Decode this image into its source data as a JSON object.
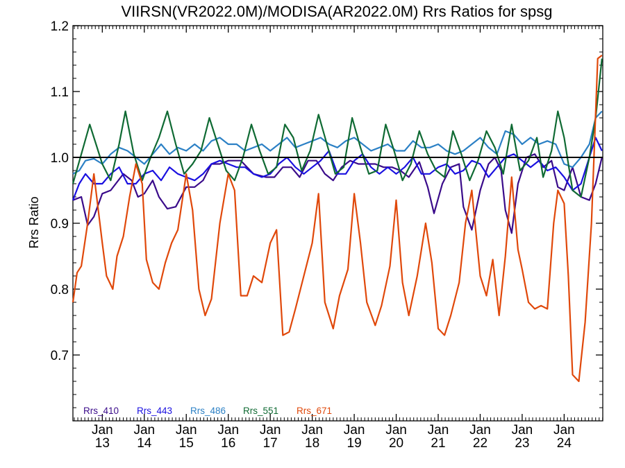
{
  "chart_data": {
    "type": "line",
    "title": "VIIRSN(VR2022.0M)/MODISA(AR2022.0M)  Rrs Ratios for spsg",
    "xlabel": "",
    "ylabel": "Rrs Ratio",
    "ylim": [
      0.6,
      1.2
    ],
    "xlim": [
      2012.3,
      2024.92
    ],
    "yticks": [
      0.7,
      0.8,
      0.9,
      1.0,
      1.1,
      1.2
    ],
    "ytick_labels": [
      "0.7",
      "0.8",
      "0.9",
      "1.0",
      "1.1",
      "1.2"
    ],
    "xticks": [
      {
        "pos": 2013.0,
        "label1": "Jan",
        "label2": "13"
      },
      {
        "pos": 2014.0,
        "label1": "Jan",
        "label2": "14"
      },
      {
        "pos": 2015.0,
        "label1": "Jan",
        "label2": "15"
      },
      {
        "pos": 2016.0,
        "label1": "Jan",
        "label2": "16"
      },
      {
        "pos": 2017.0,
        "label1": "Jan",
        "label2": "17"
      },
      {
        "pos": 2018.0,
        "label1": "Jan",
        "label2": "18"
      },
      {
        "pos": 2019.0,
        "label1": "Jan",
        "label2": "19"
      },
      {
        "pos": 2020.0,
        "label1": "Jan",
        "label2": "20"
      },
      {
        "pos": 2021.0,
        "label1": "Jan",
        "label2": "21"
      },
      {
        "pos": 2022.0,
        "label1": "Jan",
        "label2": "22"
      },
      {
        "pos": 2023.0,
        "label1": "Jan",
        "label2": "23"
      },
      {
        "pos": 2024.0,
        "label1": "Jan",
        "label2": "24"
      }
    ],
    "reference_line": 1.0,
    "legend_position": "bottom-left",
    "grid": false,
    "series": [
      {
        "name": "Rrs_410",
        "color": "#3a0b8a",
        "x": [
          2012.3,
          2012.5,
          2012.65,
          2012.8,
          2013.0,
          2013.2,
          2013.5,
          2013.7,
          2013.85,
          2014.0,
          2014.2,
          2014.35,
          2014.55,
          2014.75,
          2015.0,
          2015.2,
          2015.4,
          2015.6,
          2015.8,
          2016.0,
          2016.3,
          2016.6,
          2016.9,
          2017.1,
          2017.3,
          2017.5,
          2017.7,
          2017.9,
          2018.1,
          2018.3,
          2018.5,
          2018.7,
          2018.9,
          2019.1,
          2019.3,
          2019.5,
          2019.7,
          2019.9,
          2020.1,
          2020.3,
          2020.55,
          2020.75,
          2020.9,
          2021.1,
          2021.3,
          2021.5,
          2021.6,
          2021.8,
          2022.0,
          2022.2,
          2022.35,
          2022.5,
          2022.6,
          2022.75,
          2022.9,
          2023.1,
          2023.3,
          2023.5,
          2023.7,
          2023.85,
          2024.0,
          2024.2,
          2024.4,
          2024.6,
          2024.75,
          2024.9
        ],
        "y": [
          0.935,
          0.94,
          0.897,
          0.91,
          0.945,
          0.95,
          0.975,
          0.965,
          0.94,
          0.945,
          0.965,
          0.94,
          0.922,
          0.925,
          0.955,
          0.955,
          0.965,
          0.99,
          0.99,
          0.995,
          0.995,
          0.975,
          0.97,
          0.97,
          0.985,
          0.985,
          0.97,
          0.995,
          0.995,
          0.975,
          0.965,
          0.985,
          0.995,
          0.99,
          0.99,
          0.99,
          0.985,
          0.985,
          0.98,
          0.97,
          0.993,
          0.955,
          0.915,
          0.96,
          0.985,
          0.99,
          0.925,
          0.89,
          0.95,
          0.99,
          1.0,
          0.98,
          0.92,
          0.885,
          0.96,
          1.0,
          1.005,
          0.985,
          0.995,
          0.955,
          0.95,
          0.985,
          0.94,
          0.935,
          0.96,
          1.0
        ]
      },
      {
        "name": "Rrs_443",
        "color": "#1a10e0",
        "x": [
          2012.3,
          2012.45,
          2012.6,
          2012.8,
          2013.0,
          2013.2,
          2013.4,
          2013.6,
          2013.8,
          2014.0,
          2014.2,
          2014.4,
          2014.6,
          2014.8,
          2015.0,
          2015.2,
          2015.4,
          2015.6,
          2015.8,
          2016.0,
          2016.2,
          2016.4,
          2016.6,
          2016.8,
          2017.0,
          2017.2,
          2017.4,
          2017.6,
          2017.8,
          2018.0,
          2018.2,
          2018.4,
          2018.6,
          2018.8,
          2019.0,
          2019.2,
          2019.4,
          2019.6,
          2019.8,
          2020.0,
          2020.2,
          2020.4,
          2020.6,
          2020.8,
          2021.0,
          2021.2,
          2021.4,
          2021.6,
          2021.8,
          2022.0,
          2022.2,
          2022.4,
          2022.6,
          2022.8,
          2023.0,
          2023.2,
          2023.4,
          2023.6,
          2023.8,
          2024.0,
          2024.2,
          2024.4,
          2024.6,
          2024.75,
          2024.9
        ],
        "y": [
          0.935,
          0.96,
          0.975,
          0.96,
          0.96,
          0.975,
          0.985,
          0.96,
          0.96,
          0.975,
          0.98,
          0.965,
          0.985,
          0.975,
          0.97,
          0.965,
          0.975,
          0.99,
          0.995,
          0.99,
          0.985,
          0.985,
          0.975,
          0.97,
          0.975,
          0.99,
          1.0,
          0.985,
          0.975,
          0.985,
          0.995,
          1.01,
          0.975,
          0.975,
          0.995,
          1.005,
          0.985,
          0.975,
          0.985,
          0.975,
          0.985,
          1.0,
          0.975,
          0.975,
          0.985,
          0.99,
          0.975,
          0.98,
          0.995,
          0.99,
          0.97,
          0.985,
          1.0,
          1.005,
          0.995,
          0.985,
          0.995,
          0.98,
          0.985,
          0.97,
          0.95,
          0.96,
          1.0,
          1.03,
          1.01
        ]
      },
      {
        "name": "Rrs_486",
        "color": "#2b80c5",
        "x": [
          2012.3,
          2012.45,
          2012.6,
          2012.8,
          2013.0,
          2013.2,
          2013.4,
          2013.6,
          2013.8,
          2014.0,
          2014.2,
          2014.4,
          2014.6,
          2014.8,
          2015.0,
          2015.2,
          2015.4,
          2015.6,
          2015.8,
          2016.0,
          2016.2,
          2016.4,
          2016.6,
          2016.8,
          2017.0,
          2017.2,
          2017.4,
          2017.6,
          2017.8,
          2018.0,
          2018.2,
          2018.4,
          2018.6,
          2018.8,
          2019.0,
          2019.2,
          2019.4,
          2019.6,
          2019.8,
          2020.0,
          2020.2,
          2020.4,
          2020.6,
          2020.8,
          2021.0,
          2021.2,
          2021.4,
          2021.6,
          2021.8,
          2022.0,
          2022.2,
          2022.4,
          2022.6,
          2022.8,
          2023.0,
          2023.2,
          2023.4,
          2023.6,
          2023.8,
          2024.0,
          2024.2,
          2024.4,
          2024.6,
          2024.75,
          2024.9
        ],
        "y": [
          0.975,
          0.98,
          0.995,
          0.998,
          0.99,
          1.005,
          1.015,
          1.01,
          1.0,
          0.99,
          1.005,
          1.02,
          1.005,
          1.015,
          1.01,
          1.02,
          1.01,
          1.025,
          1.03,
          1.02,
          1.02,
          1.01,
          1.015,
          1.02,
          1.01,
          1.02,
          1.03,
          1.015,
          1.02,
          1.025,
          1.03,
          1.02,
          1.015,
          1.025,
          1.03,
          1.02,
          1.01,
          1.015,
          1.02,
          1.01,
          1.01,
          1.025,
          1.015,
          1.015,
          1.02,
          1.01,
          1.005,
          1.01,
          1.02,
          1.03,
          1.015,
          1.005,
          1.04,
          1.035,
          1.02,
          1.03,
          1.02,
          1.025,
          1.02,
          0.99,
          0.985,
          1.0,
          1.02,
          1.06,
          1.07
        ]
      },
      {
        "name": "Rrs_551",
        "color": "#0f6a33",
        "x": [
          2012.3,
          2012.5,
          2012.7,
          2012.85,
          2013.0,
          2013.2,
          2013.4,
          2013.55,
          2013.75,
          2013.95,
          2014.15,
          2014.35,
          2014.55,
          2014.75,
          2014.95,
          2015.15,
          2015.35,
          2015.55,
          2015.75,
          2015.95,
          2016.15,
          2016.35,
          2016.55,
          2016.75,
          2016.95,
          2017.15,
          2017.35,
          2017.55,
          2017.75,
          2017.95,
          2018.15,
          2018.35,
          2018.55,
          2018.75,
          2018.95,
          2019.15,
          2019.35,
          2019.55,
          2019.75,
          2019.95,
          2020.15,
          2020.35,
          2020.55,
          2020.75,
          2020.95,
          2021.15,
          2021.35,
          2021.55,
          2021.75,
          2021.95,
          2022.15,
          2022.35,
          2022.55,
          2022.75,
          2022.95,
          2023.15,
          2023.35,
          2023.5,
          2023.7,
          2023.85,
          2024.0,
          2024.2,
          2024.4,
          2024.6,
          2024.75,
          2024.9
        ],
        "y": [
          0.96,
          1.005,
          1.05,
          1.02,
          0.99,
          0.965,
          1.02,
          1.07,
          1.005,
          0.965,
          1.0,
          1.03,
          1.07,
          1.02,
          0.975,
          0.99,
          1.01,
          1.06,
          1.02,
          0.98,
          0.965,
          1.0,
          1.05,
          1.01,
          0.975,
          0.985,
          1.05,
          1.03,
          0.98,
          1.01,
          1.065,
          1.02,
          0.975,
          0.985,
          1.06,
          1.015,
          0.975,
          0.98,
          1.05,
          1.01,
          0.965,
          0.99,
          1.04,
          1.005,
          0.98,
          0.97,
          1.04,
          1.005,
          0.965,
          0.995,
          1.04,
          1.015,
          0.975,
          1.05,
          0.98,
          0.995,
          1.03,
          0.97,
          1.01,
          1.07,
          1.03,
          0.95,
          0.94,
          1.0,
          1.06,
          1.15
        ]
      },
      {
        "name": "Rrs_671",
        "color": "#e0480a",
        "x": [
          2012.3,
          2012.4,
          2012.5,
          2012.65,
          2012.8,
          2013.0,
          2013.1,
          2013.25,
          2013.35,
          2013.5,
          2013.65,
          2013.8,
          2013.95,
          2014.05,
          2014.2,
          2014.35,
          2014.5,
          2014.65,
          2014.8,
          2015.0,
          2015.15,
          2015.3,
          2015.45,
          2015.6,
          2015.8,
          2016.0,
          2016.15,
          2016.3,
          2016.45,
          2016.6,
          2016.8,
          2017.0,
          2017.15,
          2017.3,
          2017.45,
          2017.6,
          2017.8,
          2018.0,
          2018.15,
          2018.3,
          2018.5,
          2018.65,
          2018.85,
          2019.0,
          2019.15,
          2019.3,
          2019.5,
          2019.65,
          2019.85,
          2020.0,
          2020.15,
          2020.3,
          2020.5,
          2020.7,
          2020.85,
          2021.0,
          2021.15,
          2021.3,
          2021.5,
          2021.65,
          2021.8,
          2022.0,
          2022.15,
          2022.3,
          2022.45,
          2022.6,
          2022.75,
          2022.9,
          2023.0,
          2023.15,
          2023.3,
          2023.45,
          2023.6,
          2023.75,
          2023.85,
          2024.0,
          2024.1,
          2024.2,
          2024.35,
          2024.5,
          2024.65,
          2024.8,
          2024.9
        ],
        "y": [
          0.78,
          0.825,
          0.835,
          0.9,
          0.975,
          0.87,
          0.82,
          0.8,
          0.85,
          0.88,
          0.94,
          0.99,
          0.96,
          0.845,
          0.81,
          0.8,
          0.84,
          0.87,
          0.89,
          0.975,
          0.92,
          0.8,
          0.76,
          0.785,
          0.9,
          0.975,
          0.95,
          0.79,
          0.79,
          0.82,
          0.81,
          0.87,
          0.89,
          0.73,
          0.735,
          0.77,
          0.82,
          0.87,
          0.945,
          0.78,
          0.74,
          0.79,
          0.83,
          0.945,
          0.87,
          0.78,
          0.745,
          0.775,
          0.835,
          0.935,
          0.81,
          0.76,
          0.82,
          0.9,
          0.84,
          0.74,
          0.73,
          0.76,
          0.81,
          0.9,
          0.95,
          0.82,
          0.79,
          0.845,
          0.76,
          0.85,
          0.97,
          0.86,
          0.83,
          0.78,
          0.77,
          0.775,
          0.77,
          0.9,
          0.95,
          0.93,
          0.82,
          0.67,
          0.66,
          0.75,
          0.9,
          1.15,
          1.155
        ]
      }
    ]
  }
}
